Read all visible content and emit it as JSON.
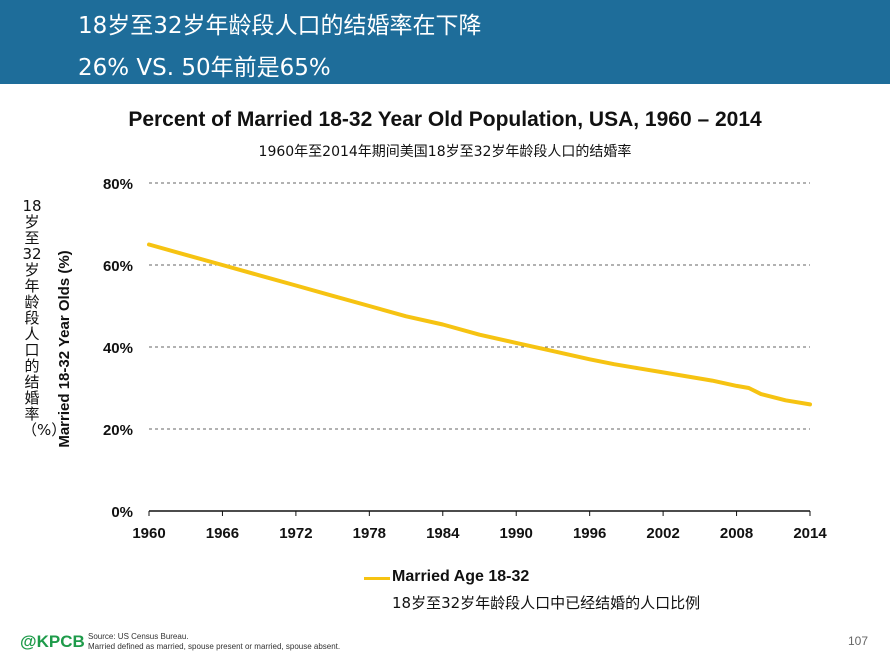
{
  "header": {
    "line1": "18岁至32岁年龄段人口的结婚率在下降",
    "line2": "26% VS. 50年前是65%"
  },
  "chart_data": {
    "type": "line",
    "title": "Percent of Married 18-32 Year Old Population, USA, 1960 – 2014",
    "subtitle": "1960年至2014年期间美国18岁至32岁年龄段人口的结婚率",
    "ylabel": "Married 18-32 Year Olds (%)",
    "ylabel_cn": "18岁至32岁年龄段人口的结婚率（%）",
    "xlabel": "",
    "xlim": [
      1960,
      2014
    ],
    "ylim": [
      0,
      80
    ],
    "x_ticks": [
      1960,
      1966,
      1972,
      1978,
      1984,
      1990,
      1996,
      2002,
      2008,
      2014
    ],
    "y_ticks": [
      {
        "value": 0,
        "label": "0%"
      },
      {
        "value": 20,
        "label": "20%"
      },
      {
        "value": 40,
        "label": "40%"
      },
      {
        "value": 60,
        "label": "60%"
      },
      {
        "value": 80,
        "label": "80%"
      }
    ],
    "grid": true,
    "legend_position": "bottom",
    "series": [
      {
        "name": "Married Age 18-32",
        "name_cn": "18岁至32岁年龄段人口中已经结婚的人口比例",
        "color": "#f6c312",
        "x": [
          1960,
          1963,
          1966,
          1969,
          1972,
          1975,
          1978,
          1981,
          1984,
          1987,
          1990,
          1993,
          1996,
          1998,
          2000,
          2002,
          2004,
          2006,
          2008,
          2009,
          2010,
          2012,
          2014
        ],
        "values": [
          65,
          62.5,
          60,
          57.5,
          55,
          52.5,
          50,
          47.5,
          45.5,
          43,
          41,
          39,
          37,
          35.8,
          34.8,
          33.8,
          32.8,
          31.8,
          30.5,
          30,
          28.5,
          27,
          26
        ]
      }
    ]
  },
  "footer": {
    "brand": "@KPCB",
    "source_line1": "Source: US Census Bureau.",
    "source_line2": "Married defined as married, spouse present or married, spouse absent.",
    "page": "107"
  }
}
